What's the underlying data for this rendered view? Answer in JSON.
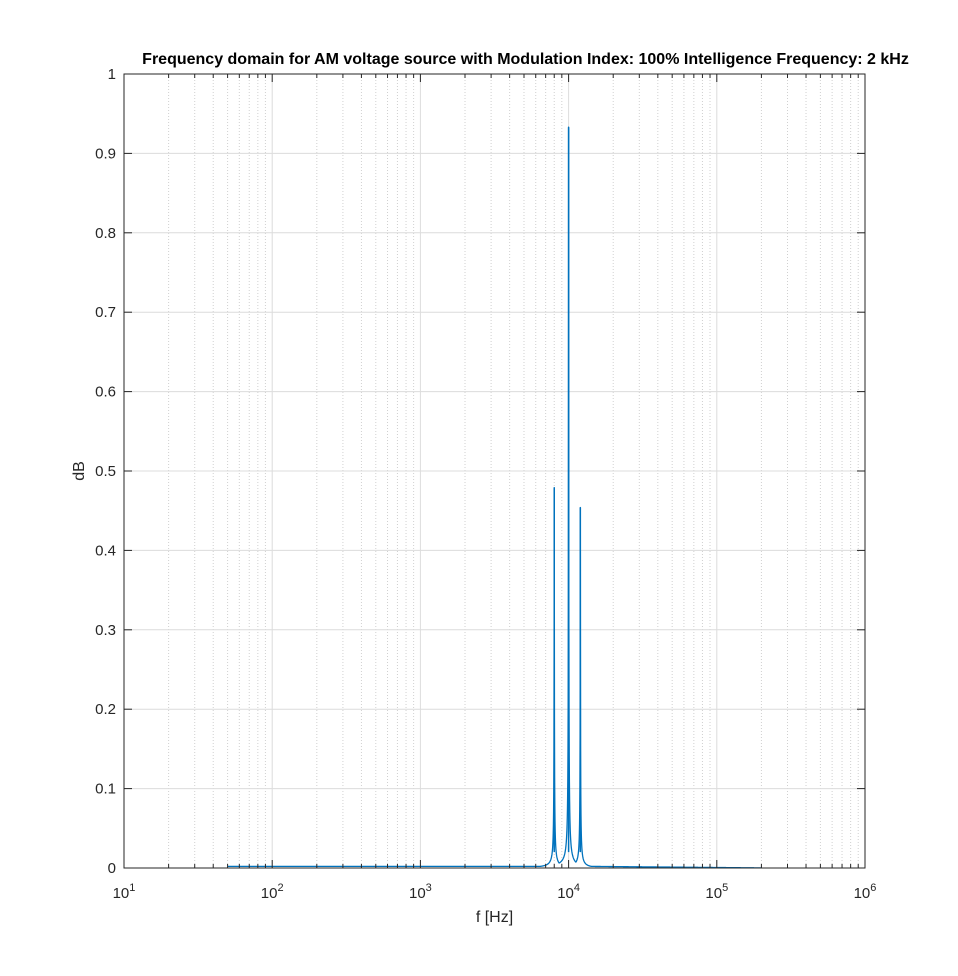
{
  "chart_data": {
    "type": "line",
    "title": "Frequency domain for AM voltage source with Modulation Index: 100% Intelligence Frequency: 2 kHz",
    "xlabel": "f [Hz]",
    "ylabel": "dB",
    "xscale": "log",
    "xlim": [
      10,
      1000000
    ],
    "ylim": [
      0,
      1
    ],
    "grid": true,
    "minor_grid": true,
    "x_ticks": [
      {
        "value": 10,
        "base": "10",
        "exp": "1"
      },
      {
        "value": 100,
        "base": "10",
        "exp": "2"
      },
      {
        "value": 1000,
        "base": "10",
        "exp": "3"
      },
      {
        "value": 10000,
        "base": "10",
        "exp": "4"
      },
      {
        "value": 100000,
        "base": "10",
        "exp": "5"
      },
      {
        "value": 1000000,
        "base": "10",
        "exp": "6"
      }
    ],
    "y_ticks": [
      {
        "value": 0,
        "label": "0"
      },
      {
        "value": 0.1,
        "label": "0.1"
      },
      {
        "value": 0.2,
        "label": "0.2"
      },
      {
        "value": 0.3,
        "label": "0.3"
      },
      {
        "value": 0.4,
        "label": "0.4"
      },
      {
        "value": 0.5,
        "label": "0.5"
      },
      {
        "value": 0.6,
        "label": "0.6"
      },
      {
        "value": 0.7,
        "label": "0.7"
      },
      {
        "value": 0.8,
        "label": "0.8"
      },
      {
        "value": 0.9,
        "label": "0.9"
      },
      {
        "value": 1,
        "label": "1"
      }
    ],
    "series": [
      {
        "color": "#0072BD",
        "x_range": [
          50,
          200000
        ],
        "baseline": 0.002,
        "peaks": [
          {
            "x": 8000,
            "y": 0.479
          },
          {
            "x": 10000,
            "y": 0.933
          },
          {
            "x": 12000,
            "y": 0.454
          }
        ]
      }
    ]
  }
}
